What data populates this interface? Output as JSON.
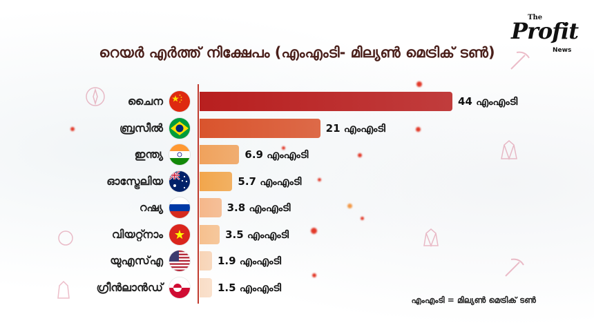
{
  "title": "റെയർ എർത്ത് നിക്ഷേപം (എംഎംടി- മില്യൺ മെട്രിക് ടൺ)",
  "logo": {
    "the": "The",
    "name": "Profit",
    "sub": "News"
  },
  "legend_note": "എംഎംടി = മില്യൺ മെട്രിക് ടൺ",
  "unit_label": "എംഎംടി",
  "colors": [
    "#b81f1f",
    "#d9542d",
    "#f0a25c",
    "#f2a64c",
    "#f5b78a",
    "#f6c08e",
    "#f8d4b6",
    "#f9ddc6"
  ],
  "flag_icons": [
    "china-flag-icon",
    "brazil-flag-icon",
    "india-flag-icon",
    "australia-flag-icon",
    "russia-flag-icon",
    "vietnam-flag-icon",
    "usa-flag-icon",
    "greenland-flag-icon"
  ],
  "chart_data": {
    "type": "bar",
    "orientation": "horizontal",
    "title": "റെയർ എർത്ത് നിക്ഷേപം (എംഎംടി- മില്യൺ മെട്രിക് ടൺ)",
    "categories": [
      "ചൈന",
      "ബ്രസീൽ",
      "ഇന്ത്യ",
      "ഓസ്ട്രേലിയ",
      "റഷ്യ",
      "വിയറ്റ്നാം",
      "യുഎസ്എ",
      "ഗ്രീൻലാൻഡ്"
    ],
    "values": [
      44,
      21,
      6.9,
      5.7,
      3.8,
      3.5,
      1.9,
      1.5
    ],
    "value_labels": [
      "44 എംഎംടി",
      "21 എംഎംടി",
      "6.9 എംഎംടി",
      "5.7 എംഎംടി",
      "3.8 എംഎംടി",
      "3.5 എംഎംടി",
      "1.9 എംഎംടി",
      "1.5 എംഎംടി"
    ],
    "xlabel": "",
    "ylabel": "",
    "grid": false
  }
}
